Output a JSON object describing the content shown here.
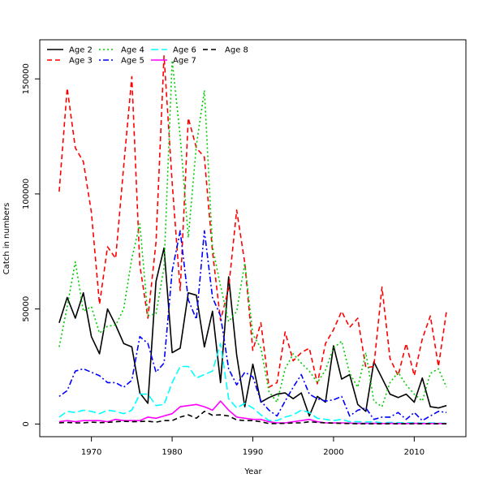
{
  "chart_data": {
    "type": "line",
    "title": "",
    "xlabel": "Year",
    "ylabel": "Catch in numbers",
    "xlim": [
      1963.6,
      2016.4
    ],
    "ylim": [
      -5500,
      167000
    ],
    "x_ticks": [
      1970,
      1980,
      1990,
      2000,
      2010
    ],
    "x_tick_labels": [
      "1970",
      "1980",
      "1990",
      "2000",
      "2010"
    ],
    "y_ticks": [
      0,
      50000,
      100000,
      150000
    ],
    "y_tick_labels": [
      "0",
      "50000",
      "100000",
      "150000"
    ],
    "grid": false,
    "legend_position": "top-left",
    "x": [
      1966,
      1967,
      1968,
      1969,
      1970,
      1971,
      1972,
      1973,
      1974,
      1975,
      1976,
      1977,
      1978,
      1979,
      1980,
      1981,
      1982,
      1983,
      1984,
      1985,
      1986,
      1987,
      1988,
      1989,
      1990,
      1991,
      1992,
      1993,
      1994,
      1995,
      1996,
      1997,
      1998,
      1999,
      2000,
      2001,
      2002,
      2003,
      2004,
      2005,
      2006,
      2007,
      2008,
      2009,
      2010,
      2011,
      2012,
      2013,
      2014
    ],
    "series": [
      {
        "name": "Age 2",
        "color": "#000000",
        "dash": "solid",
        "values": [
          44000,
          55000,
          46000,
          57000,
          38000,
          30500,
          50000,
          43000,
          35000,
          33500,
          13500,
          9000,
          62000,
          76500,
          31000,
          33000,
          57000,
          56000,
          33500,
          49000,
          18000,
          64000,
          30000,
          7500,
          26000,
          9500,
          11500,
          13000,
          13500,
          11000,
          13500,
          3500,
          12000,
          9500,
          34000,
          19500,
          21500,
          8500,
          5500,
          27000,
          20000,
          13000,
          11500,
          13000,
          9500,
          20000,
          7500,
          7000,
          8000
        ]
      },
      {
        "name": "Age 3",
        "color": "#ff0000",
        "dash": "dashed",
        "values": [
          101000,
          146000,
          120000,
          114000,
          92000,
          52000,
          77000,
          72000,
          112000,
          151000,
          69000,
          46000,
          79000,
          160000,
          105000,
          58000,
          133000,
          120000,
          116000,
          75000,
          45000,
          59000,
          93000,
          70000,
          32000,
          44000,
          16000,
          18000,
          40000,
          27500,
          31000,
          33000,
          17500,
          35000,
          41000,
          49000,
          42000,
          46000,
          24500,
          25000,
          59500,
          28500,
          21000,
          35000,
          21000,
          37000,
          47000,
          25000,
          49000
        ]
      },
      {
        "name": "Age 4",
        "color": "#00cd00",
        "dash": "dotted",
        "values": [
          33500,
          51000,
          70500,
          49000,
          51000,
          39500,
          42500,
          43000,
          50000,
          72000,
          87000,
          47000,
          48000,
          68000,
          158000,
          125000,
          81000,
          121000,
          145000,
          77000,
          60000,
          44500,
          49000,
          70000,
          39000,
          33000,
          14000,
          9500,
          24000,
          30500,
          26500,
          23000,
          18000,
          23500,
          33000,
          36000,
          22000,
          16000,
          31000,
          10000,
          7500,
          18000,
          22500,
          17000,
          13000,
          10000,
          22000,
          24000,
          16000
        ]
      },
      {
        "name": "Age 5",
        "color": "#0000ff",
        "dash": "dotdash",
        "values": [
          12000,
          14500,
          23000,
          24000,
          22500,
          21000,
          18000,
          18000,
          16000,
          19000,
          38000,
          35000,
          22500,
          26500,
          66500,
          84000,
          54000,
          45500,
          84000,
          55000,
          47000,
          24000,
          17000,
          22500,
          20500,
          10000,
          6000,
          3500,
          10000,
          16000,
          21500,
          13000,
          11000,
          10000,
          10500,
          12000,
          3500,
          6000,
          7000,
          2000,
          3000,
          3000,
          5000,
          2000,
          5000,
          1500,
          3500,
          5500,
          5000
        ]
      },
      {
        "name": "Age 6",
        "color": "#00ffff",
        "dash": "longdash",
        "values": [
          3000,
          5500,
          5000,
          6000,
          5500,
          4500,
          6000,
          5500,
          4500,
          6000,
          13000,
          13000,
          8000,
          8500,
          18000,
          25000,
          25000,
          20000,
          21500,
          23000,
          35000,
          11000,
          7000,
          9000,
          7000,
          4000,
          1500,
          1500,
          3000,
          4000,
          6000,
          5000,
          2500,
          2000,
          1500,
          2000,
          1000,
          1000,
          800,
          1000,
          500,
          700,
          600,
          500,
          600,
          400,
          500,
          400,
          300
        ]
      },
      {
        "name": "Age 7",
        "color": "#ff00ff",
        "dash": "solid",
        "values": [
          1000,
          1500,
          1000,
          1500,
          1500,
          1500,
          1000,
          2000,
          1500,
          1500,
          1500,
          3000,
          2500,
          3500,
          4500,
          7500,
          8000,
          8500,
          7500,
          6000,
          10000,
          6000,
          3000,
          2500,
          2000,
          2000,
          1000,
          500,
          500,
          1000,
          1500,
          2000,
          1000,
          500,
          500,
          500,
          400,
          300,
          300,
          300,
          200,
          300,
          200,
          200,
          300,
          200,
          200,
          200,
          200
        ]
      },
      {
        "name": "Age 8",
        "color": "#000000",
        "dash": "dashed",
        "values": [
          500,
          700,
          500,
          500,
          800,
          600,
          700,
          1000,
          1200,
          1000,
          1100,
          1200,
          800,
          1500,
          1500,
          3000,
          4000,
          2500,
          5500,
          3800,
          4000,
          3500,
          1800,
          1500,
          1500,
          1000,
          200,
          200,
          300,
          500,
          500,
          1000,
          700,
          500,
          400,
          300,
          200,
          100,
          100,
          100,
          100,
          100,
          100,
          100,
          100,
          100,
          100,
          100,
          100
        ]
      }
    ]
  }
}
